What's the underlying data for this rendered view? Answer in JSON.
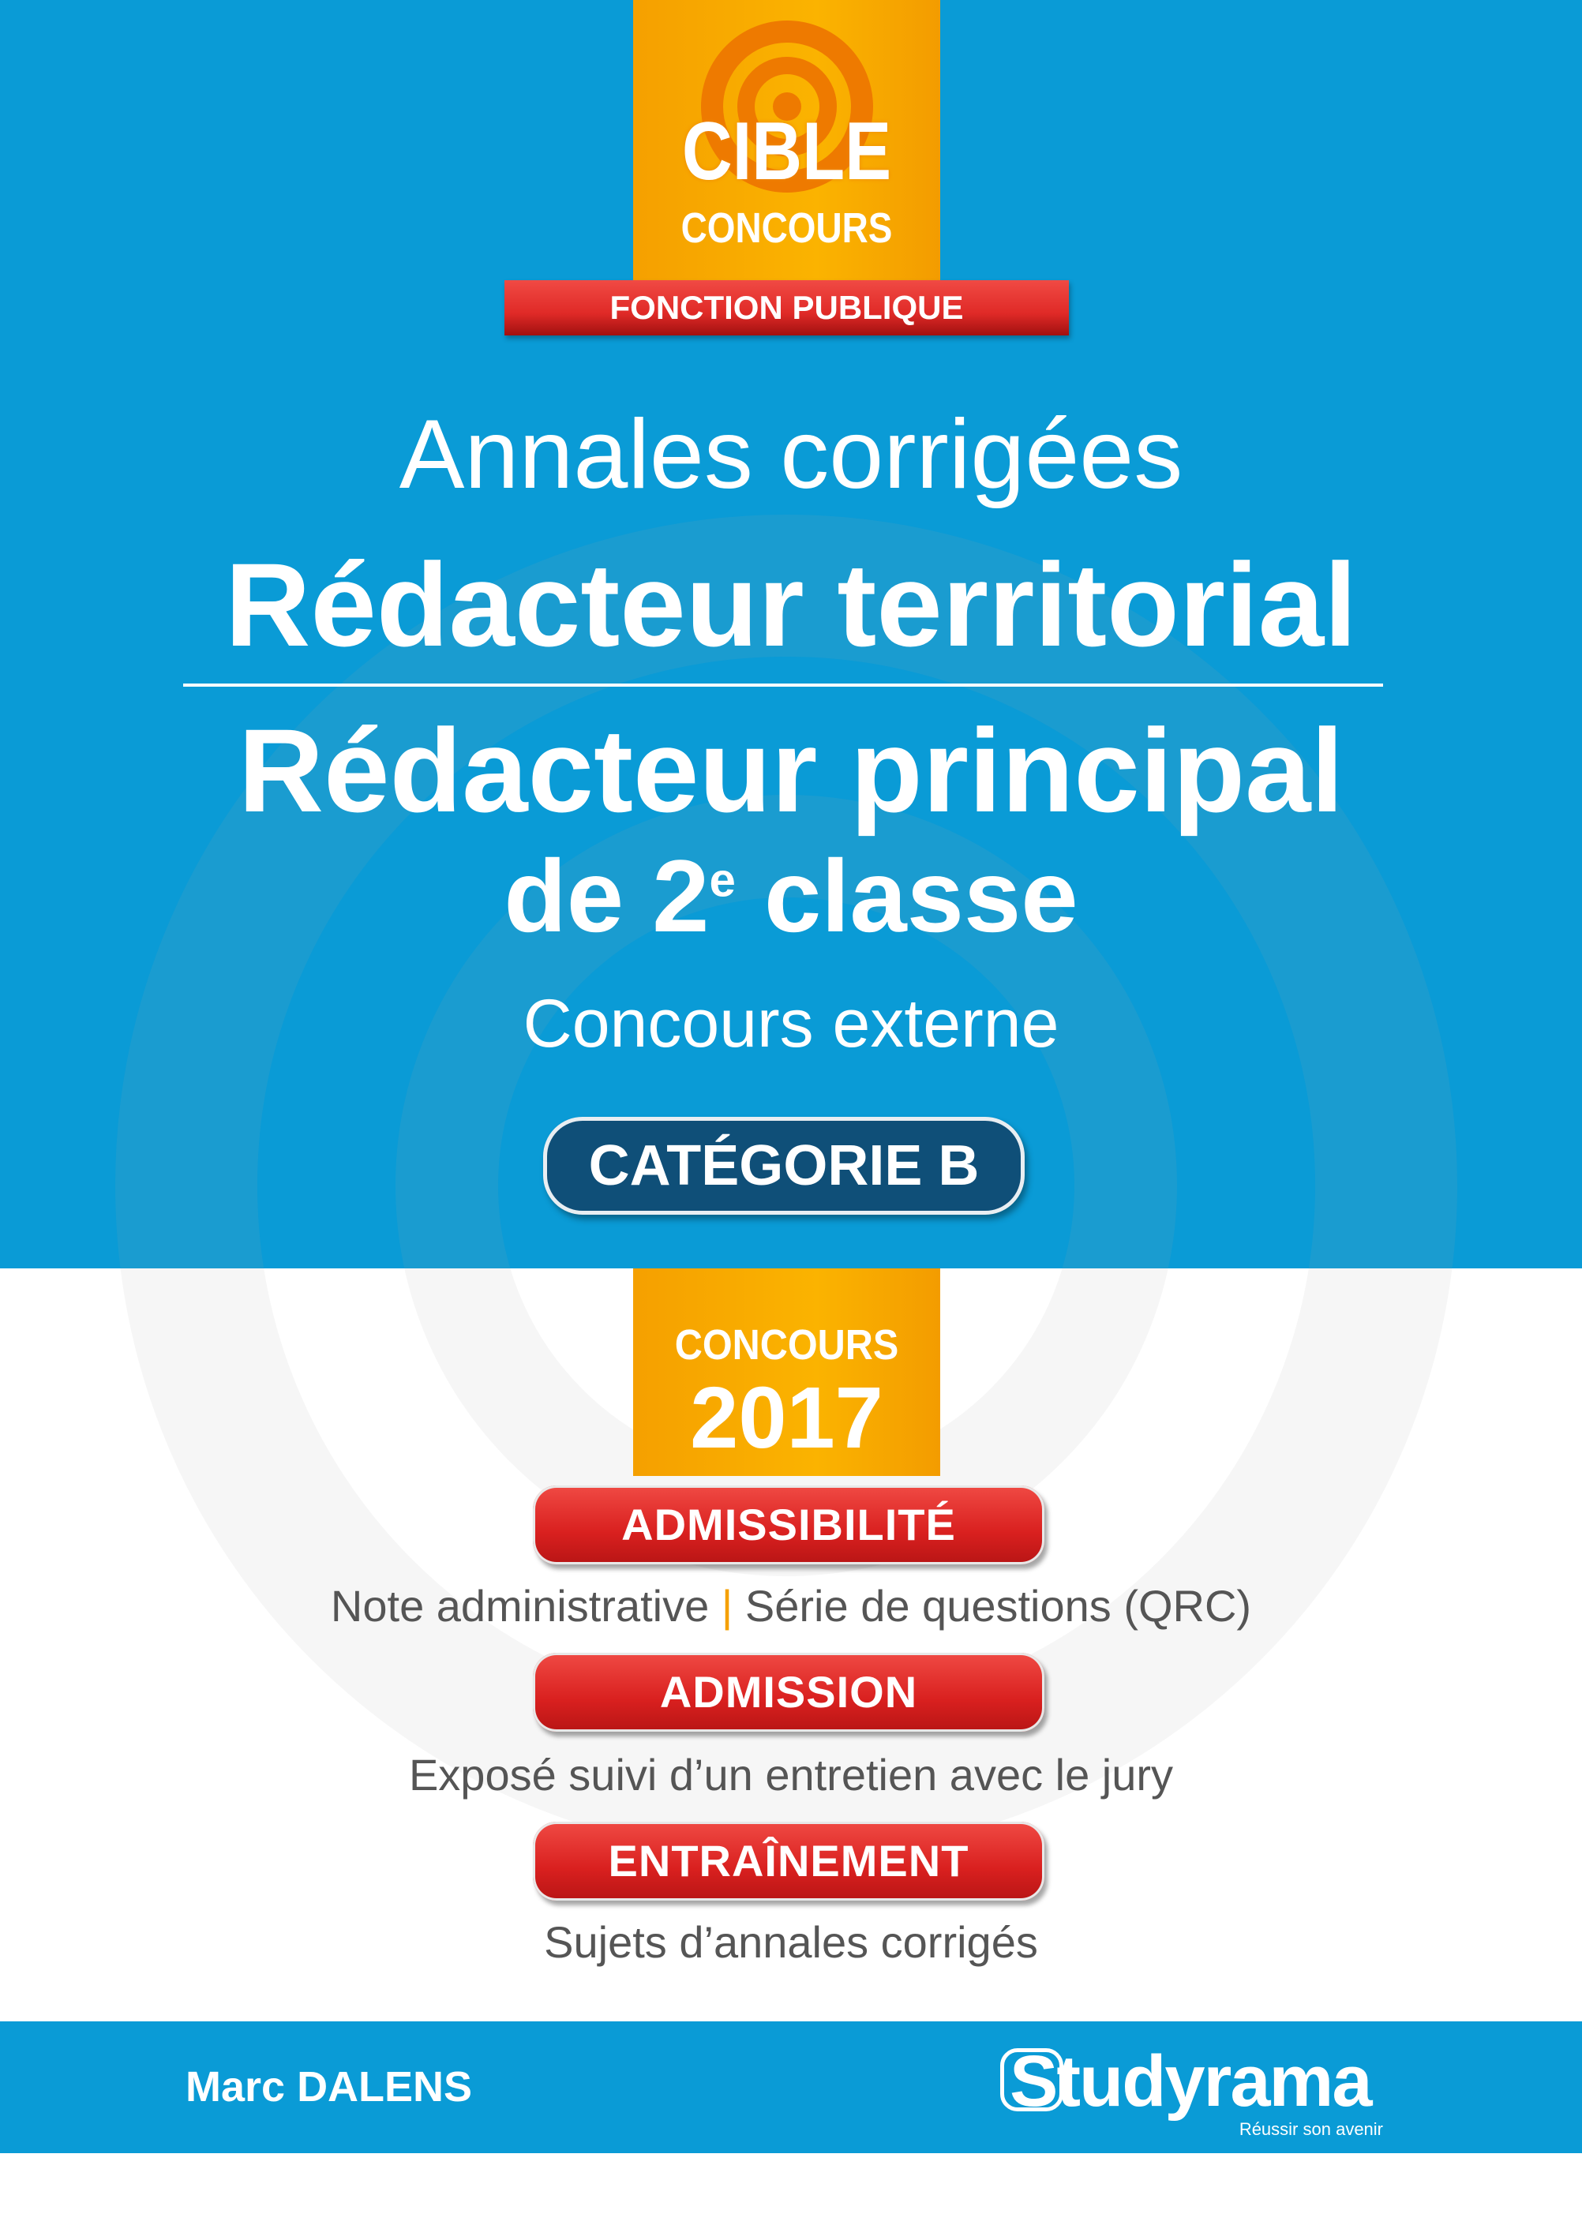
{
  "series_badge": {
    "line1": "CIBLE",
    "line2": "CONCOURS",
    "banner": "FONCTION PUBLIQUE"
  },
  "title": {
    "kicker": "Annales corrigées",
    "line1": "Rédacteur territorial",
    "line2": "Rédacteur principal",
    "line3_prefix": "de 2",
    "line3_sup": "e",
    "line3_suffix": " classe",
    "subtitle": "Concours externe"
  },
  "category": "CATÉGORIE B",
  "year_badge": {
    "label": "CONCOURS",
    "year": "2017"
  },
  "sections": [
    {
      "label": "ADMISSIBILITÉ",
      "desc_a": "Note administrative",
      "separator": "|",
      "desc_b": "Série de questions (QRC)"
    },
    {
      "label": "ADMISSION",
      "desc": "Exposé suivi d’un entretien avec le jury"
    },
    {
      "label": "ENTRAÎNEMENT",
      "desc": "Sujets d’annales corrigés"
    }
  ],
  "footer": {
    "author": "Marc DALENS",
    "publisher": "Studyrama",
    "tagline": "Réussir son avenir"
  },
  "colors": {
    "blue": "#0a9bd6",
    "orange": "#fbb300",
    "red": "#e02a27",
    "navy": "#0f4f78"
  }
}
